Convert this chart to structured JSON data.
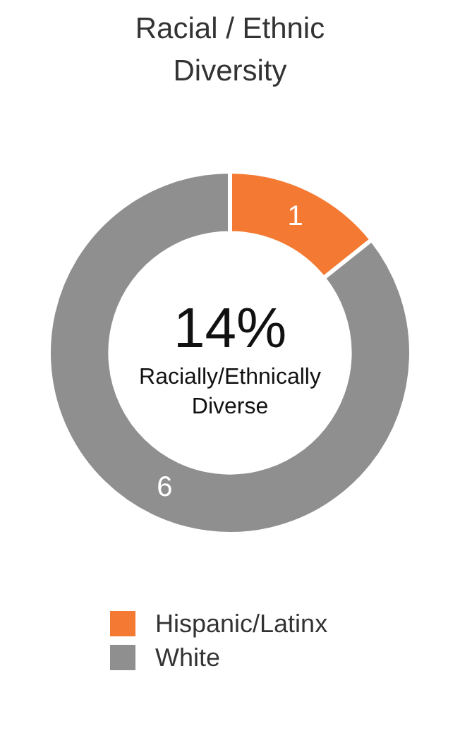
{
  "chart_data": {
    "type": "donut",
    "title": "Racial / Ethnic Diversity",
    "categories": [
      "Hispanic/Latinx",
      "White"
    ],
    "values": [
      1,
      6
    ],
    "colors": [
      "#f47a33",
      "#8f8f8f"
    ],
    "data_labels": true,
    "legend": "bottom",
    "annotations": [
      "14%",
      "Racially/Ethnically Diverse"
    ]
  }
}
